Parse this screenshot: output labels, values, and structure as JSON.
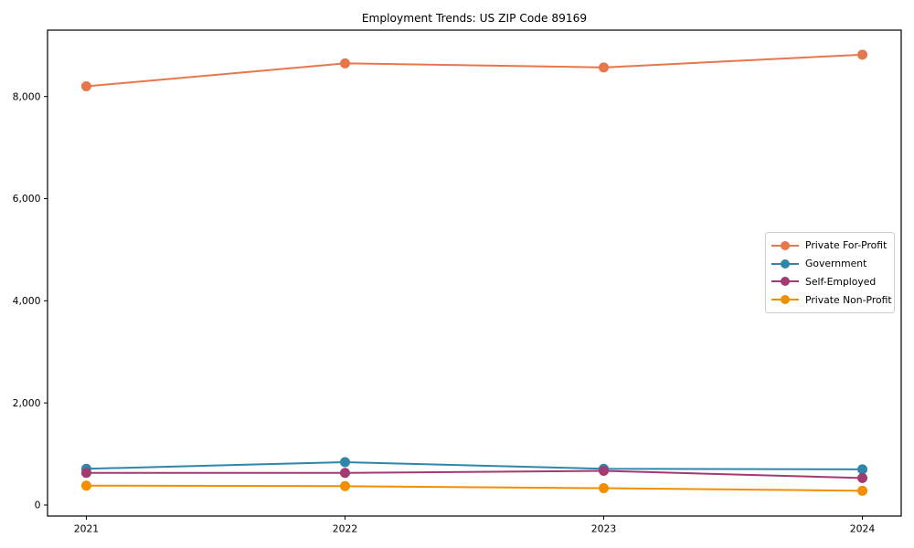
{
  "chart_data": {
    "type": "line",
    "title": "Employment Trends: US ZIP Code 89169",
    "categories": [
      "2021",
      "2022",
      "2023",
      "2024"
    ],
    "series": [
      {
        "name": "Private For-Profit",
        "color": "#E8764B",
        "values": [
          8200,
          8650,
          8570,
          8820
        ]
      },
      {
        "name": "Government",
        "color": "#2E86AB",
        "values": [
          710,
          840,
          710,
          700
        ]
      },
      {
        "name": "Self-Employed",
        "color": "#A23B72",
        "values": [
          630,
          630,
          670,
          530
        ]
      },
      {
        "name": "Private Non-Profit",
        "color": "#F18F01",
        "values": [
          380,
          370,
          330,
          280
        ]
      }
    ],
    "xlabel": "",
    "ylabel": "",
    "ylim": [
      -215,
      9300
    ],
    "yticks": [
      0,
      2000,
      4000,
      6000,
      8000
    ],
    "ytick_labels": [
      "0",
      "2,000",
      "4,000",
      "6,000",
      "8,000"
    ],
    "x_margin": 0.15,
    "grid": false,
    "legend_position": "center-right",
    "marker": "circle",
    "axis_color": "#000000",
    "text_color": "#000000",
    "background": "#ffffff"
  }
}
